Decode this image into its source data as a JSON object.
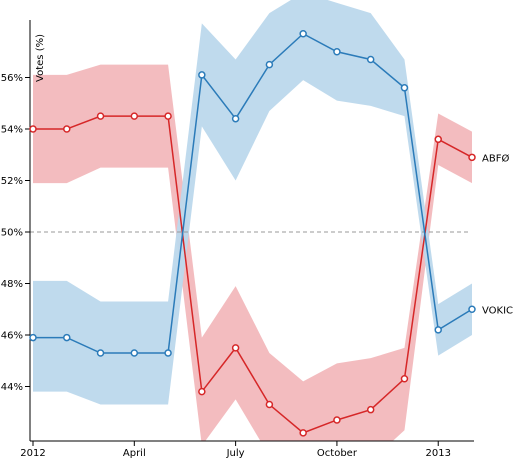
{
  "chart_data": {
    "type": "line",
    "ylabel": "Votes (%)",
    "ylim": [
      42.1,
      57.9
    ],
    "x_ticks": [
      "2012",
      "April",
      "July",
      "October",
      "2013"
    ],
    "y_ticks": [
      "44%",
      "46%",
      "48%",
      "50%",
      "52%",
      "54%",
      "56%"
    ],
    "reference_line": 50,
    "x": [
      "2012-01",
      "2012-02",
      "2012-03",
      "2012-04",
      "2012-05",
      "2012-06",
      "2012-07",
      "2012-08",
      "2012-09",
      "2012-10",
      "2012-11",
      "2012-12",
      "2013-01",
      "2013-02"
    ],
    "series": [
      {
        "name": "ABFØ",
        "color": "#d62728",
        "band_color": "#f2b8bc",
        "values": [
          54.0,
          54.0,
          54.5,
          54.5,
          54.5,
          43.8,
          45.5,
          43.3,
          42.2,
          42.7,
          43.1,
          44.3,
          53.6,
          52.9
        ],
        "lower": [
          51.9,
          51.9,
          52.5,
          52.5,
          52.5,
          41.7,
          43.5,
          41.3,
          40.5,
          40.8,
          41.1,
          42.3,
          52.6,
          51.9
        ],
        "upper": [
          56.1,
          56.1,
          56.5,
          56.5,
          56.5,
          45.9,
          47.9,
          45.3,
          44.2,
          44.9,
          45.1,
          45.5,
          54.6,
          53.9
        ]
      },
      {
        "name": "VOKIC",
        "color": "#2b7bb9",
        "band_color": "#bcd8ec",
        "values": [
          45.9,
          45.9,
          45.3,
          45.3,
          45.3,
          56.1,
          54.4,
          56.5,
          57.7,
          57.0,
          56.7,
          55.6,
          46.2,
          47.0
        ],
        "lower": [
          43.8,
          43.8,
          43.3,
          43.3,
          43.3,
          54.1,
          52.0,
          54.7,
          55.9,
          55.1,
          54.9,
          54.5,
          45.2,
          46.0
        ],
        "upper": [
          48.1,
          48.1,
          47.3,
          47.3,
          47.3,
          58.1,
          56.7,
          58.5,
          59.3,
          58.9,
          58.5,
          56.7,
          47.2,
          48.0
        ]
      }
    ]
  }
}
